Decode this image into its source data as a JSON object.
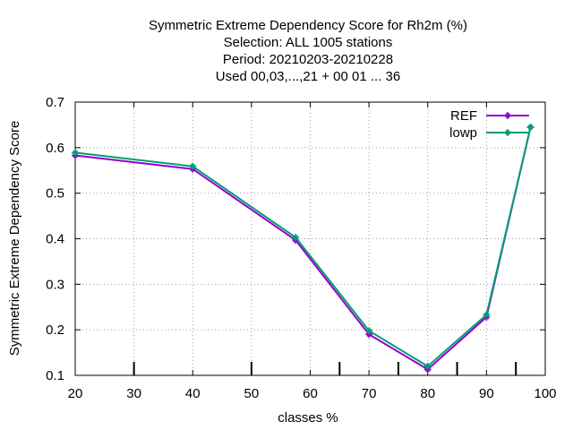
{
  "chart_data": {
    "type": "line",
    "title_lines": [
      "Symmetric Extreme Dependency Score  for Rh2m (%)",
      "Selection: ALL   1005 stations",
      "Period: 20210203-20210228",
      "Used  00,03,...,21  + 00 01 ... 36"
    ],
    "xlabel": "classes %",
    "ylabel": "Symmetric Extreme Dependency Score",
    "xlim": [
      20,
      100
    ],
    "ylim": [
      0.1,
      0.7
    ],
    "xticks": [
      20,
      30,
      40,
      50,
      60,
      70,
      80,
      90,
      100
    ],
    "yticks": [
      0.1,
      0.2,
      0.3,
      0.4,
      0.5,
      0.6,
      0.7
    ],
    "xtick_labels": [
      "20",
      "30",
      "40",
      "50",
      "60",
      "70",
      "80",
      "90",
      "100"
    ],
    "ytick_labels": [
      "0.1",
      "0.2",
      "0.3",
      "0.4",
      "0.5",
      "0.6",
      "0.7"
    ],
    "bottom_marks": [
      30,
      50,
      65,
      75,
      85,
      95
    ],
    "grid": true,
    "legend_position": "top-right",
    "series": [
      {
        "name": "REF",
        "color": "#9400d3",
        "x": [
          20,
          40,
          57.5,
          70,
          80,
          90,
          97.5
        ],
        "y": [
          0.583,
          0.553,
          0.397,
          0.19,
          0.113,
          0.228,
          0.645
        ]
      },
      {
        "name": "lowp",
        "color": "#009e73",
        "x": [
          20,
          40,
          57.5,
          70,
          80,
          90,
          97.5
        ],
        "y": [
          0.589,
          0.559,
          0.403,
          0.198,
          0.12,
          0.233,
          0.645
        ]
      }
    ]
  }
}
